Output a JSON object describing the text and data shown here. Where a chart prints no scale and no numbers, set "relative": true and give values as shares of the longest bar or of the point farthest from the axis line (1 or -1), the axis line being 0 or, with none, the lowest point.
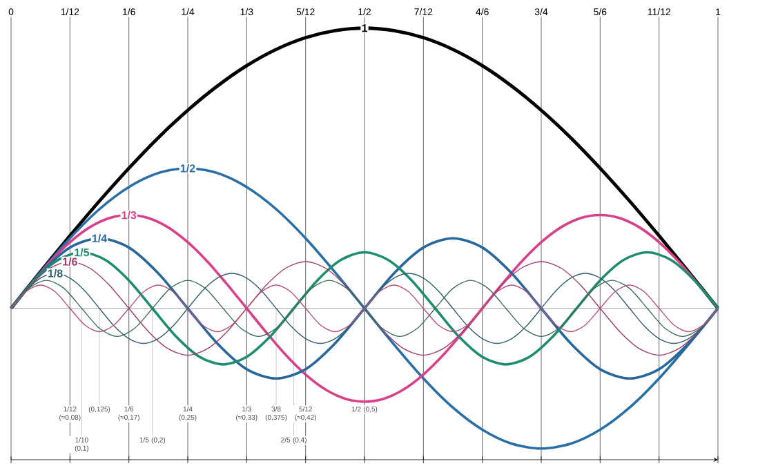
{
  "chart_data": {
    "type": "line",
    "relative": true,
    "grid": "x",
    "xlim": [
      0,
      1
    ],
    "xticks": [
      0,
      {
        "value": 0.0833,
        "label": "1/12"
      },
      {
        "value": 0.1667,
        "label": "1/6"
      },
      {
        "value": 0.25,
        "label": "1/4"
      },
      {
        "value": 0.3333,
        "label": "1/3"
      },
      {
        "value": 0.4167,
        "label": "5/12"
      },
      {
        "value": 0.5,
        "label": "1/2"
      },
      {
        "value": 0.5833,
        "label": "7/12"
      },
      {
        "value": 0.6667,
        "label": "4/6"
      },
      {
        "value": 0.75,
        "label": "3/4"
      },
      {
        "value": 0.8333,
        "label": "5/6"
      },
      {
        "value": 0.9167,
        "label": "11/12"
      },
      1
    ],
    "series": [
      {
        "name": "1",
        "color": "#000000",
        "x": [
          0,
          0.0417,
          0.0833,
          0.125,
          0.1667,
          0.2083,
          0.25,
          0.2917,
          0.3333,
          0.375,
          0.4167,
          0.4583,
          0.5,
          0.5417,
          0.5833,
          0.625,
          0.6667,
          0.7083,
          0.75,
          0.7917,
          0.8333,
          0.875,
          0.9167,
          0.9583,
          1
        ],
        "values": [
          0,
          0.131,
          0.259,
          0.383,
          0.5,
          0.609,
          0.707,
          0.793,
          0.866,
          0.924,
          0.966,
          0.991,
          1,
          0.991,
          0.966,
          0.924,
          0.866,
          0.793,
          0.707,
          0.609,
          0.5,
          0.383,
          0.259,
          0.131,
          0
        ]
      },
      {
        "name": "1/2",
        "color": "#2a6ea6",
        "x": [
          0,
          0.0417,
          0.0833,
          0.125,
          0.1667,
          0.2083,
          0.25,
          0.2917,
          0.3333,
          0.375,
          0.4167,
          0.4583,
          0.5,
          0.5417,
          0.5833,
          0.625,
          0.6667,
          0.7083,
          0.75,
          0.7917,
          0.8333,
          0.875,
          0.9167,
          0.9583,
          1
        ],
        "values": [
          0,
          0.129,
          0.25,
          0.354,
          0.433,
          0.483,
          0.5,
          0.483,
          0.433,
          0.354,
          0.25,
          0.129,
          0,
          -0.129,
          -0.25,
          -0.354,
          -0.433,
          -0.483,
          -0.5,
          -0.483,
          -0.433,
          -0.354,
          -0.25,
          -0.129,
          0
        ]
      },
      {
        "name": "1/3",
        "color": "#d9408a",
        "x": [
          0,
          0.0278,
          0.0556,
          0.0833,
          0.1111,
          0.1389,
          0.1667,
          0.1944,
          0.2222,
          0.25,
          0.2778,
          0.3056,
          0.3333,
          0.3611,
          0.3889,
          0.4167,
          0.4444,
          0.4722,
          0.5,
          0.5278,
          0.5556,
          0.5833,
          0.6111,
          0.6389,
          0.6667,
          0.6944,
          0.7222,
          0.75,
          0.7778,
          0.8056,
          0.8333,
          0.8611,
          0.8889,
          0.9167,
          0.9444,
          0.9722,
          1
        ],
        "values": [
          0,
          0.086,
          0.167,
          0.236,
          0.289,
          0.322,
          0.333,
          0.322,
          0.289,
          0.236,
          0.167,
          0.086,
          0,
          -0.086,
          -0.167,
          -0.236,
          -0.289,
          -0.322,
          -0.333,
          -0.322,
          -0.289,
          -0.236,
          -0.167,
          -0.086,
          0,
          0.086,
          0.167,
          0.236,
          0.289,
          0.322,
          0.333,
          0.322,
          0.289,
          0.236,
          0.167,
          0.086,
          0
        ]
      },
      {
        "name": "1/4",
        "color": "#27679c",
        "x": [
          0,
          0.0417,
          0.0833,
          0.125,
          0.1667,
          0.2083,
          0.25,
          0.2917,
          0.3333,
          0.375,
          0.4167,
          0.4583,
          0.5,
          0.5417,
          0.5833,
          0.625,
          0.6667,
          0.7083,
          0.75,
          0.7917,
          0.8333,
          0.875,
          0.9167,
          0.9583,
          1
        ],
        "values": [
          0,
          0.125,
          0.217,
          0.25,
          0.217,
          0.125,
          0,
          -0.125,
          -0.217,
          -0.25,
          -0.217,
          -0.125,
          0,
          0.125,
          0.217,
          0.25,
          0.217,
          0.125,
          0,
          -0.125,
          -0.217,
          -0.25,
          -0.217,
          -0.125,
          0
        ]
      },
      {
        "name": "1/5",
        "color": "#1e8c6e",
        "x": [
          0,
          0.0333,
          0.0667,
          0.1,
          0.1333,
          0.1667,
          0.2,
          0.2333,
          0.2667,
          0.3,
          0.3333,
          0.3667,
          0.4,
          0.4333,
          0.4667,
          0.5,
          0.5333,
          0.5667,
          0.6,
          0.6333,
          0.6667,
          0.7,
          0.7333,
          0.7667,
          0.8,
          0.8333,
          0.8667,
          0.9,
          0.9333,
          0.9667,
          1
        ],
        "values": [
          0,
          0.1,
          0.173,
          0.2,
          0.173,
          0.1,
          0,
          -0.1,
          -0.173,
          -0.2,
          -0.173,
          -0.1,
          0,
          0.1,
          0.173,
          0.2,
          0.173,
          0.1,
          0,
          -0.1,
          -0.173,
          -0.2,
          -0.173,
          -0.1,
          0,
          0.1,
          0.173,
          0.2,
          0.173,
          0.1,
          0
        ]
      },
      {
        "name": "1/6",
        "color": "#a03a6a",
        "x": [
          0,
          0.0278,
          0.0556,
          0.0833,
          0.1111,
          0.1389,
          0.1667,
          0.1944,
          0.2222,
          0.25,
          0.2778,
          0.3056,
          0.3333,
          0.3611,
          0.3889,
          0.4167,
          0.4444,
          0.4722,
          0.5,
          0.5278,
          0.5556,
          0.5833,
          0.6111,
          0.6389,
          0.6667,
          0.6944,
          0.7222,
          0.75,
          0.7778,
          0.8056,
          0.8333,
          0.8611,
          0.8889,
          0.9167,
          0.9444,
          0.9722,
          1
        ],
        "values": [
          0,
          0.083,
          0.144,
          0.167,
          0.144,
          0.083,
          0,
          -0.083,
          -0.144,
          -0.167,
          -0.144,
          -0.083,
          0,
          0.083,
          0.144,
          0.167,
          0.144,
          0.083,
          0,
          -0.083,
          -0.144,
          -0.167,
          -0.144,
          -0.083,
          0,
          0.083,
          0.144,
          0.167,
          0.144,
          0.083,
          0,
          -0.083,
          -0.144,
          -0.167,
          -0.144,
          -0.083,
          0
        ]
      },
      {
        "name": "1/8",
        "color": "#2f5f6a",
        "x": [
          0,
          0.0208,
          0.0417,
          0.0625,
          0.0833,
          0.1042,
          0.125,
          0.1458,
          0.1667,
          0.1875,
          0.2083,
          0.2292,
          0.25,
          0.2708,
          0.2917,
          0.3125,
          0.3333,
          0.3542,
          0.375,
          0.3958,
          0.4167,
          0.4375,
          0.4583,
          0.4792,
          0.5,
          0.5208,
          0.5417,
          0.5625,
          0.5833,
          0.6042,
          0.625,
          0.6458,
          0.6667,
          0.6875,
          0.7083,
          0.7292,
          0.75,
          0.7708,
          0.7917,
          0.8125,
          0.8333,
          0.8542,
          0.875,
          0.8958,
          0.9167,
          0.9375,
          0.9583,
          0.9792,
          1
        ],
        "values": [
          0,
          0.063,
          0.108,
          0.125,
          0.108,
          0.063,
          0,
          -0.063,
          -0.108,
          -0.125,
          -0.108,
          -0.063,
          0,
          0.063,
          0.108,
          0.125,
          0.108,
          0.063,
          0,
          -0.063,
          -0.108,
          -0.125,
          -0.108,
          -0.063,
          0,
          0.063,
          0.108,
          0.125,
          0.108,
          0.063,
          0,
          -0.063,
          -0.108,
          -0.125,
          -0.108,
          -0.063,
          0,
          0.063,
          0.108,
          0.125,
          0.108,
          0.063,
          0,
          -0.063,
          -0.108,
          -0.125,
          -0.108,
          -0.063,
          0
        ]
      },
      {
        "color": "#3c6e5a",
        "x": [
          0,
          0.025,
          0.05,
          0.075,
          0.1,
          0.125,
          0.15,
          0.175,
          0.2,
          0.225,
          0.25,
          0.275,
          0.3,
          0.325,
          0.35,
          0.375,
          0.4,
          0.425,
          0.45,
          0.475,
          0.5,
          0.525,
          0.55,
          0.575,
          0.6,
          0.625,
          0.65,
          0.675,
          0.7,
          0.725,
          0.75,
          0.775,
          0.8,
          0.825,
          0.85,
          0.875,
          0.9,
          0.925,
          0.95,
          0.975,
          1
        ],
        "values": [
          0,
          0.071,
          0.1,
          0.071,
          0,
          -0.071,
          -0.1,
          -0.071,
          0,
          0.071,
          0.1,
          0.071,
          0,
          -0.071,
          -0.1,
          -0.071,
          0,
          0.071,
          0.1,
          0.071,
          0,
          -0.071,
          -0.1,
          -0.071,
          0,
          0.071,
          0.1,
          0.071,
          0,
          -0.071,
          -0.1,
          -0.071,
          0,
          0.071,
          0.1,
          0.071,
          0,
          -0.071,
          -0.1,
          -0.071,
          0
        ]
      },
      {
        "color": "#b8507e",
        "x": [
          0,
          0.0208,
          0.0417,
          0.0625,
          0.0833,
          0.1042,
          0.125,
          0.1458,
          0.1667,
          0.1875,
          0.2083,
          0.2292,
          0.25,
          0.2708,
          0.2917,
          0.3125,
          0.3333,
          0.3542,
          0.375,
          0.3958,
          0.4167,
          0.4375,
          0.4583,
          0.4792,
          0.5,
          0.5208,
          0.5417,
          0.5625,
          0.5833,
          0.6042,
          0.625,
          0.6458,
          0.6667,
          0.6875,
          0.7083,
          0.7292,
          0.75,
          0.7708,
          0.7917,
          0.8125,
          0.8333,
          0.8542,
          0.875,
          0.8958,
          0.9167,
          0.9375,
          0.9583,
          0.9792,
          1
        ],
        "values": [
          0,
          0.059,
          0.083,
          0.059,
          0,
          -0.059,
          -0.083,
          -0.059,
          0,
          0.059,
          0.083,
          0.059,
          0,
          -0.059,
          -0.083,
          -0.059,
          0,
          0.059,
          0.083,
          0.059,
          0,
          -0.059,
          -0.083,
          -0.059,
          0,
          0.059,
          0.083,
          0.059,
          0,
          -0.059,
          -0.083,
          -0.059,
          0,
          0.059,
          0.083,
          0.059,
          0,
          -0.059,
          -0.083,
          -0.059,
          0,
          0.059,
          0.083,
          0.059,
          0,
          -0.059,
          -0.083,
          -0.059,
          0
        ]
      }
    ],
    "annotations": [
      {
        "text": "1/12 (≈0,08)",
        "x": 0.0833,
        "y": 0
      },
      {
        "text": "1/10 (0,1)",
        "x": 0.1,
        "y": 0
      },
      {
        "text": "(0,125)",
        "x": 0.125,
        "y": 0
      },
      {
        "text": "1/6 (≈0,17)",
        "x": 0.1667,
        "y": 0
      },
      {
        "text": "1/5 (0,2)",
        "x": 0.2,
        "y": 0
      },
      {
        "text": "1/4 (0,25)",
        "x": 0.25,
        "y": 0
      },
      {
        "text": "1/3 (≈0,33)",
        "x": 0.3333,
        "y": 0
      },
      {
        "text": "3/8 (0,375)",
        "x": 0.375,
        "y": 0
      },
      {
        "text": "2/5 (0,4)",
        "x": 0.4,
        "y": 0
      },
      {
        "text": "5/12 (≈0,42)",
        "x": 0.4167,
        "y": 0
      },
      {
        "text": "1/2 (0,5)",
        "x": 0.5,
        "y": 0
      }
    ]
  }
}
